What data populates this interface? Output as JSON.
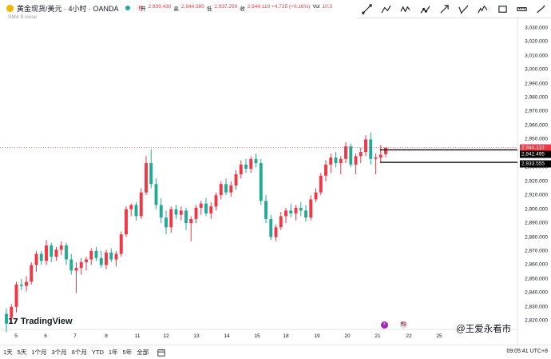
{
  "legend": {
    "symbol_title": "黄金现货/美元 · 4小时 · OANDA",
    "badge": "R",
    "ohlc": [
      {
        "k": "开",
        "v": "2,939.430"
      },
      {
        "k": "高",
        "v": "2,944.380"
      },
      {
        "k": "低",
        "v": "2,937.250"
      },
      {
        "k": "收",
        "v": "2,944.110 +4.725 (+0.16%)"
      },
      {
        "k": "Vol",
        "v": "10.3"
      }
    ],
    "ma_label": "SMA 9 close"
  },
  "toolbar": {
    "tools": [
      "trend-line-icon",
      "polyline-icon",
      "zigzag-icon",
      "path-icon",
      "arrow-icon",
      "check-icon",
      "wave-icon",
      "rectangle-icon",
      "ruler-icon",
      "brush-icon"
    ]
  },
  "price_axis": {
    "labels": [
      "3,030.000",
      "3,020.000",
      "3,010.000",
      "3,000.000",
      "2,990.000",
      "2,980.000",
      "2,970.000",
      "2,960.000",
      "2,950.000",
      "2,940.000",
      "2,930.000",
      "2,920.000",
      "2,910.000",
      "2,900.000",
      "2,890.000",
      "2,880.000",
      "2,870.000",
      "2,860.000",
      "2,850.000",
      "2,840.000",
      "2,830.000",
      "2,820.000"
    ],
    "last_price": "2,944.110",
    "level_a": "2,942.495",
    "level_b": "2,933.555",
    "colors": {
      "last": "#f23645",
      "level": "#000000"
    }
  },
  "time_axis": {
    "labels": [
      "5",
      "6",
      "7",
      "8",
      "11",
      "12",
      "13",
      "14",
      "15",
      "18",
      "19",
      "20",
      "21",
      "22",
      "25"
    ]
  },
  "chart_data": {
    "type": "candlestick",
    "symbol": "黄金现货/美元",
    "interval": "4小时",
    "ylim": [
      2815,
      3035
    ],
    "candles": [
      [
        2825,
        2829,
        2812,
        2818
      ],
      [
        2822,
        2832,
        2818,
        2830
      ],
      [
        2830,
        2848,
        2826,
        2846
      ],
      [
        2846,
        2850,
        2842,
        2845
      ],
      [
        2845,
        2852,
        2841,
        2848
      ],
      [
        2848,
        2862,
        2846,
        2860
      ],
      [
        2860,
        2870,
        2855,
        2868
      ],
      [
        2868,
        2870,
        2860,
        2863
      ],
      [
        2863,
        2878,
        2860,
        2874
      ],
      [
        2874,
        2876,
        2862,
        2866
      ],
      [
        2866,
        2873,
        2863,
        2871
      ],
      [
        2871,
        2877,
        2867,
        2874
      ],
      [
        2874,
        2876,
        2860,
        2864
      ],
      [
        2864,
        2868,
        2853,
        2856
      ],
      [
        2856,
        2862,
        2840,
        2858
      ],
      [
        2858,
        2865,
        2853,
        2862
      ],
      [
        2862,
        2866,
        2856,
        2864
      ],
      [
        2864,
        2872,
        2860,
        2870
      ],
      [
        2870,
        2873,
        2863,
        2865
      ],
      [
        2865,
        2870,
        2858,
        2860
      ],
      [
        2860,
        2871,
        2857,
        2869
      ],
      [
        2869,
        2872,
        2862,
        2864
      ],
      [
        2864,
        2870,
        2859,
        2868
      ],
      [
        2868,
        2884,
        2866,
        2882
      ],
      [
        2882,
        2902,
        2880,
        2900
      ],
      [
        2900,
        2904,
        2895,
        2903
      ],
      [
        2903,
        2905,
        2892,
        2895
      ],
      [
        2895,
        2915,
        2893,
        2912
      ],
      [
        2912,
        2938,
        2910,
        2933
      ],
      [
        2933,
        2943,
        2915,
        2918
      ],
      [
        2918,
        2922,
        2900,
        2903
      ],
      [
        2903,
        2908,
        2890,
        2894
      ],
      [
        2894,
        2899,
        2882,
        2887
      ],
      [
        2887,
        2902,
        2883,
        2900
      ],
      [
        2900,
        2903,
        2893,
        2896
      ],
      [
        2896,
        2902,
        2892,
        2899
      ],
      [
        2899,
        2901,
        2885,
        2890
      ],
      [
        2890,
        2895,
        2877,
        2893
      ],
      [
        2893,
        2903,
        2890,
        2901
      ],
      [
        2901,
        2906,
        2896,
        2904
      ],
      [
        2904,
        2908,
        2895,
        2897
      ],
      [
        2897,
        2905,
        2893,
        2902
      ],
      [
        2902,
        2912,
        2899,
        2910
      ],
      [
        2910,
        2920,
        2907,
        2918
      ],
      [
        2918,
        2922,
        2910,
        2912
      ],
      [
        2912,
        2920,
        2909,
        2917
      ],
      [
        2917,
        2928,
        2914,
        2925
      ],
      [
        2925,
        2935,
        2922,
        2932
      ],
      [
        2932,
        2936,
        2926,
        2929
      ],
      [
        2929,
        2938,
        2926,
        2936
      ],
      [
        2936,
        2940,
        2930,
        2933
      ],
      [
        2933,
        2936,
        2903,
        2906
      ],
      [
        2906,
        2910,
        2890,
        2893
      ],
      [
        2893,
        2896,
        2878,
        2880
      ],
      [
        2880,
        2889,
        2877,
        2887
      ],
      [
        2887,
        2898,
        2885,
        2895
      ],
      [
        2895,
        2901,
        2890,
        2899
      ],
      [
        2899,
        2904,
        2894,
        2897
      ],
      [
        2897,
        2903,
        2892,
        2901
      ],
      [
        2901,
        2905,
        2895,
        2899
      ],
      [
        2899,
        2903,
        2891,
        2894
      ],
      [
        2894,
        2910,
        2892,
        2907
      ],
      [
        2907,
        2915,
        2905,
        2912
      ],
      [
        2912,
        2926,
        2910,
        2924
      ],
      [
        2924,
        2935,
        2920,
        2932
      ],
      [
        2932,
        2940,
        2926,
        2937
      ],
      [
        2937,
        2941,
        2930,
        2933
      ],
      [
        2933,
        2938,
        2925,
        2936
      ],
      [
        2936,
        2948,
        2933,
        2945
      ],
      [
        2945,
        2947,
        2930,
        2932
      ],
      [
        2932,
        2940,
        2925,
        2938
      ],
      [
        2938,
        2944,
        2933,
        2941
      ],
      [
        2941,
        2953,
        2938,
        2950
      ],
      [
        2950,
        2955,
        2932,
        2936
      ],
      [
        2936,
        2940,
        2925,
        2937
      ],
      [
        2937,
        2946,
        2934,
        2939
      ],
      [
        2939.43,
        2944.38,
        2937.25,
        2944.11
      ]
    ],
    "colors": {
      "up": "#f23645",
      "down": "#22ab94",
      "ma": "#2962ff"
    },
    "levels": [
      2944.11,
      2942.495,
      2933.555
    ]
  },
  "events": [
    {
      "glyph": "⚡",
      "color": "#9c27b0"
    },
    {
      "glyph": "🇺🇸",
      "color": "#e0e3eb"
    }
  ],
  "bottom": {
    "ranges": [
      "1天",
      "5天",
      "1个月",
      "3个月",
      "6个月",
      "YTD",
      "1年",
      "5年",
      "全部"
    ],
    "clock": "09:05:41 UTC+8",
    "brand": "TradingView",
    "watermark": "@王爱永看市"
  }
}
